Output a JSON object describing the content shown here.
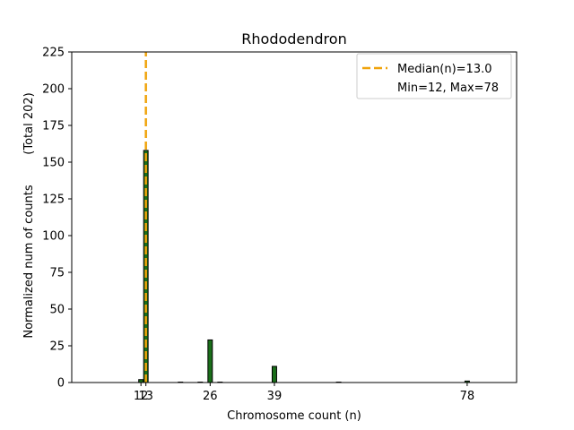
{
  "chart_data": {
    "type": "bar",
    "title": "Rhododendron",
    "xlabel": "Chromosome count (n)",
    "ylabel": "Normalized num of counts",
    "ylabel_total": "(Total 202)",
    "xlim": [
      -2,
      88
    ],
    "ylim": [
      0,
      225
    ],
    "x_ticks": [
      12,
      13,
      26,
      39,
      78
    ],
    "y_ticks": [
      0,
      25,
      50,
      75,
      100,
      125,
      150,
      175,
      200,
      225
    ],
    "bar_width": 0.9,
    "bar_color": "#1a6e1a",
    "bar_edge_color": "#000000",
    "bars": [
      {
        "x": 12,
        "value": 2
      },
      {
        "x": 13,
        "value": 158
      },
      {
        "x": 20,
        "value": 0.3
      },
      {
        "x": 24,
        "value": 0.3
      },
      {
        "x": 26,
        "value": 29
      },
      {
        "x": 28,
        "value": 0.3
      },
      {
        "x": 39,
        "value": 11
      },
      {
        "x": 52,
        "value": 0.3
      },
      {
        "x": 78,
        "value": 1
      }
    ],
    "median": 13.0,
    "median_color": "#f0a30a",
    "legend": {
      "position": "top-right",
      "median_label": "Median(n)=13.0",
      "range_label": "Min=12, Max=78"
    },
    "grid": false
  }
}
